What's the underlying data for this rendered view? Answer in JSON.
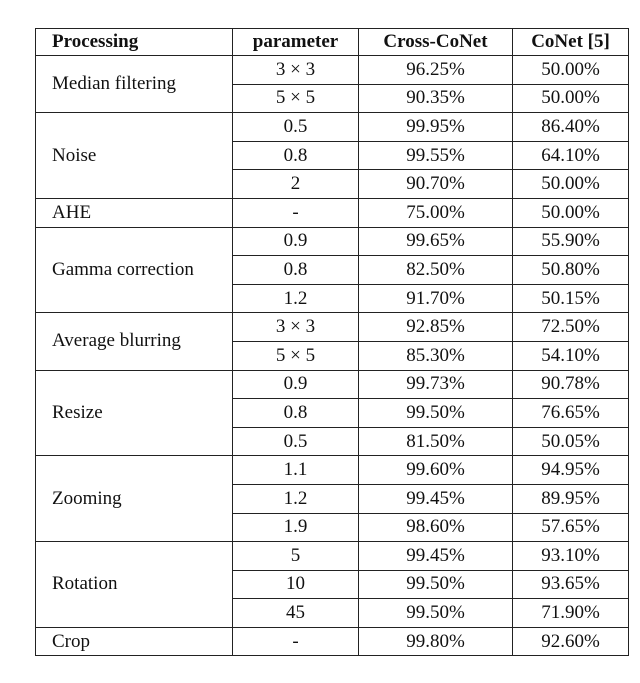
{
  "table": {
    "header": [
      "Processing",
      "parameter",
      "Cross-CoNet",
      "CoNet [5]"
    ],
    "groups": [
      {
        "processing": "Median filtering",
        "rows": [
          [
            "3 × 3",
            "96.25%",
            "50.00%"
          ],
          [
            "5 × 5",
            "90.35%",
            "50.00%"
          ]
        ]
      },
      {
        "processing": "Noise",
        "rows": [
          [
            "0.5",
            "99.95%",
            "86.40%"
          ],
          [
            "0.8",
            "99.55%",
            "64.10%"
          ],
          [
            "2",
            "90.70%",
            "50.00%"
          ]
        ]
      },
      {
        "processing": "AHE",
        "rows": [
          [
            "-",
            "75.00%",
            "50.00%"
          ]
        ]
      },
      {
        "processing": "Gamma correction",
        "rows": [
          [
            "0.9",
            "99.65%",
            "55.90%"
          ],
          [
            "0.8",
            "82.50%",
            "50.80%"
          ],
          [
            "1.2",
            "91.70%",
            "50.15%"
          ]
        ]
      },
      {
        "processing": "Average blurring",
        "rows": [
          [
            "3 × 3",
            "92.85%",
            "72.50%"
          ],
          [
            "5 × 5",
            "85.30%",
            "54.10%"
          ]
        ]
      },
      {
        "processing": "Resize",
        "rows": [
          [
            "0.9",
            "99.73%",
            "90.78%"
          ],
          [
            "0.8",
            "99.50%",
            "76.65%"
          ],
          [
            "0.5",
            "81.50%",
            "50.05%"
          ]
        ]
      },
      {
        "processing": "Zooming",
        "rows": [
          [
            "1.1",
            "99.60%",
            "94.95%"
          ],
          [
            "1.2",
            "99.45%",
            "89.95%"
          ],
          [
            "1.9",
            "98.60%",
            "57.65%"
          ]
        ]
      },
      {
        "processing": "Rotation",
        "rows": [
          [
            "5",
            "99.45%",
            "93.10%"
          ],
          [
            "10",
            "99.50%",
            "93.65%"
          ],
          [
            "45",
            "99.50%",
            "71.90%"
          ]
        ]
      },
      {
        "processing": "Crop",
        "rows": [
          [
            "-",
            "99.80%",
            "92.60%"
          ]
        ]
      }
    ]
  }
}
